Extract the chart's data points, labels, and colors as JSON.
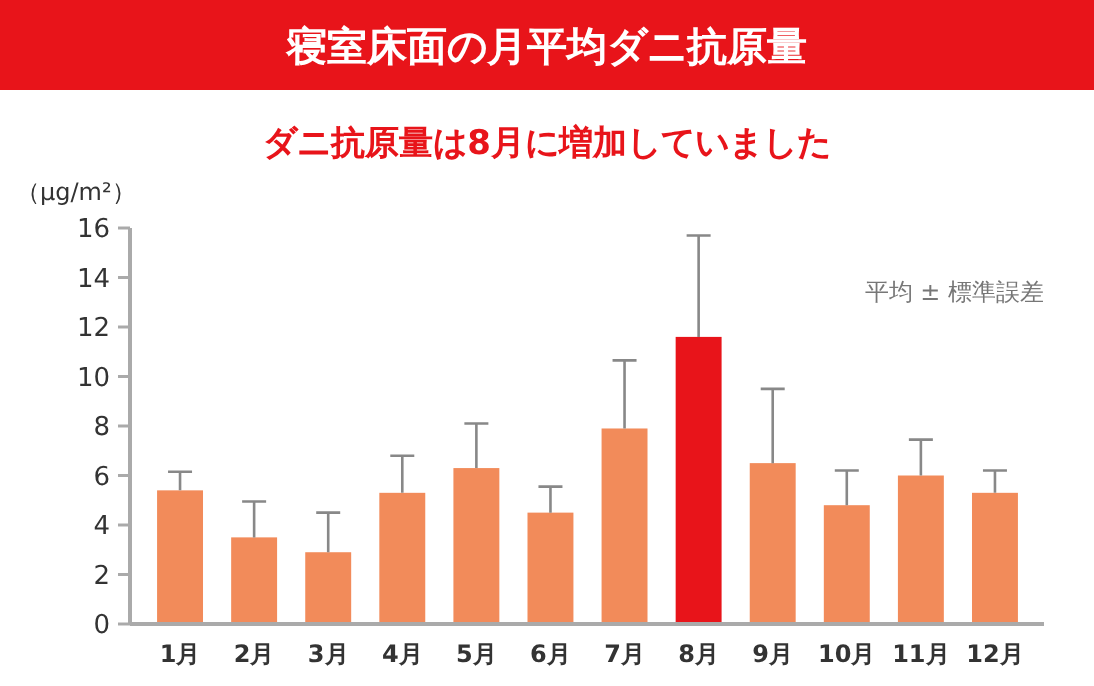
{
  "chart_data": {
    "type": "bar",
    "title": "寝室床面の月平均ダニ抗原量",
    "subtitle": "ダニ抗原量は8月に増加していました",
    "ylabel": "（μg/m²）",
    "annotations": [
      "平均 ± 標準誤差"
    ],
    "categories": [
      "1月",
      "2月",
      "3月",
      "4月",
      "5月",
      "6月",
      "7月",
      "8月",
      "9月",
      "10月",
      "11月",
      "12月"
    ],
    "values": [
      5.4,
      3.5,
      2.9,
      5.3,
      6.3,
      4.5,
      7.9,
      11.6,
      6.5,
      4.8,
      6.0,
      5.3
    ],
    "colors": [
      "#f28b5a",
      "#f28b5a",
      "#f28b5a",
      "#f28b5a",
      "#f28b5a",
      "#f28b5a",
      "#f28b5a",
      "#e8141a",
      "#f28b5a",
      "#f28b5a",
      "#f28b5a",
      "#f28b5a"
    ],
    "errors": [
      [
        5.4,
        6.15
      ],
      [
        3.5,
        4.95
      ],
      [
        2.9,
        4.5
      ],
      [
        5.3,
        6.8
      ],
      [
        6.3,
        8.1
      ],
      [
        4.5,
        5.55
      ],
      [
        7.9,
        10.65
      ],
      [
        11.6,
        15.7
      ],
      [
        6.5,
        9.5
      ],
      [
        4.8,
        6.2
      ],
      [
        6.0,
        7.45
      ],
      [
        5.3,
        6.2
      ]
    ],
    "ylim": [
      0,
      16
    ],
    "yticks": [
      0,
      2,
      4,
      6,
      8,
      10,
      12,
      14,
      16
    ],
    "grid": false
  }
}
